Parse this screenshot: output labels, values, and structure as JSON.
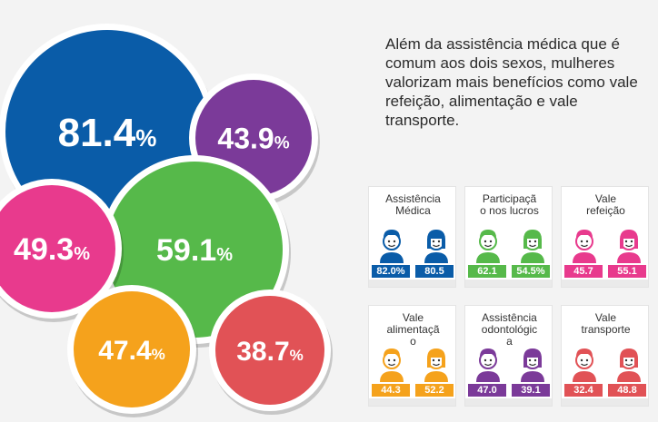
{
  "chart_data": [
    {
      "type": "bubble",
      "unit": "%",
      "bubbles": [
        {
          "value": 81.4,
          "label": "81.4",
          "color": "#0a5ca8"
        },
        {
          "value": 43.9,
          "label": "43.9",
          "color": "#7b3a99"
        },
        {
          "value": 49.3,
          "label": "49.3",
          "color": "#e83a8d"
        },
        {
          "value": 59.1,
          "label": "59.1",
          "color": "#56b94a"
        },
        {
          "value": 47.4,
          "label": "47.4",
          "color": "#f5a21c"
        },
        {
          "value": 38.7,
          "label": "38.7",
          "color": "#e15256"
        }
      ]
    },
    {
      "type": "table",
      "categories": [
        {
          "title": [
            "Assistência",
            "Médica"
          ],
          "color": "#0a5ca8",
          "men": "82.0%",
          "women": "80.5"
        },
        {
          "title": [
            "Participaçã",
            "o nos lucros"
          ],
          "color": "#56b94a",
          "men": "62.1",
          "women": "54.5%"
        },
        {
          "title": [
            "Vale",
            "refeição"
          ],
          "color": "#e83a8d",
          "men": "45.7",
          "women": "55.1"
        },
        {
          "title": [
            "Vale",
            "alimentaçã",
            "o"
          ],
          "color": "#f5a21c",
          "men": "44.3",
          "women": "52.2"
        },
        {
          "title": [
            "Assistência",
            "odontológic",
            "a"
          ],
          "color": "#7b3a99",
          "men": "47.0",
          "women": "39.1"
        },
        {
          "title": [
            "Vale",
            "transporte"
          ],
          "color": "#e15256",
          "men": "32.4",
          "women": "48.8"
        }
      ]
    }
  ],
  "intro": {
    "lines": [
      "Além da assistência médica que é",
      "comum aos dois sexos, mulheres",
      "valorizam mais benefícios como vale",
      "refeição, alimentação e vale",
      "transporte."
    ]
  }
}
